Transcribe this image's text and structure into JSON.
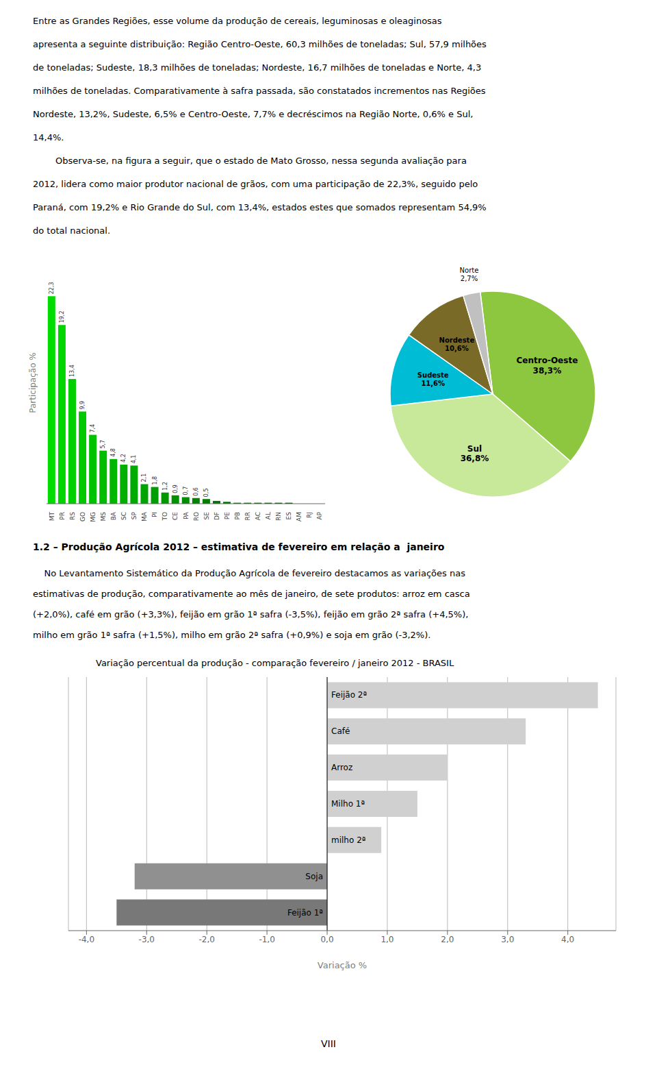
{
  "chart_data": [
    {
      "type": "bar",
      "annotations": [
        "Entre as Grandes Regiões, esse volume da produção de cereais, leguminosas e oleaginosas",
        "apresenta a seguinte distribuição: Região Centro-Oeste, 60,3 milhões de toneladas; Sul, 57,9 milhões",
        "de toneladas; Sudeste, 18,3 milhões de toneladas; Nordeste, 16,7 milhões de toneladas e Norte, 4,3",
        "milhões de toneladas. Comparativamente à safra passada, são constatados incrementos nas Regiões",
        "Nordeste, 13,2%, Sudeste, 6,5% e Centro-Oeste, 7,7% e decréscimos na Região Norte, 0,6% e Sul,",
        "14,4%.",
        "        Observa-se, na figura a seguir, que o estado de Mato Grosso, nessa segunda avaliação para",
        "2012, lidera como maior produtor nacional de grãos, com uma participação de 22,3%, seguido pelo",
        "Paraná, com 19,2% e Rio Grande do Sul, com 13,4%, estados estes que somados representam 54,9%",
        "do total nacional."
      ],
      "y_label": "Participação %",
      "categories": [
        "MT",
        "PR",
        "RS",
        "GO",
        "MG",
        "MS",
        "BA",
        "SC",
        "SP",
        "MA",
        "PI",
        "TO",
        "CE",
        "PA",
        "RO",
        "SE",
        "DF",
        "PE",
        "PB",
        "RR",
        "AC",
        "AL",
        "RN",
        "ES",
        "AM",
        "RJ",
        "AP"
      ],
      "values": [
        22.3,
        19.2,
        13.4,
        9.9,
        7.4,
        5.7,
        4.8,
        4.2,
        4.1,
        2.1,
        1.8,
        1.2,
        0.9,
        0.7,
        0.6,
        0.5,
        0.3,
        0.2,
        0.1,
        0.1,
        0.1,
        0.1,
        0.1,
        0.1,
        0.0,
        0.0,
        0.0
      ],
      "value_labels": [
        "22,3",
        "19,2",
        "13,4",
        "9,9",
        "7,4",
        "5,7",
        "4,8",
        "4,2",
        "4,1",
        "2,1",
        "1,8",
        "1,2",
        "0,9",
        "0,7",
        "0,6",
        "0,5",
        null,
        null,
        null,
        null,
        null,
        null,
        null,
        null,
        null,
        null,
        null
      ],
      "data_labels": true,
      "colors": [
        "#00dc00",
        "#00d500",
        "#00cf00",
        "#00c900",
        "#00c300",
        "#00bd00",
        "#00b700",
        "#00b000",
        "#00aa00",
        "#00a400",
        "#009e00",
        "#009800",
        "#009200",
        "#008c00",
        "#008500",
        "#007f00",
        "#007900",
        "#007300",
        "#006d00",
        "#006700",
        "#006000",
        "#005a00",
        "#005400",
        "#004e00",
        "#004800",
        "#004200",
        "#003c00"
      ],
      "ylim": [
        0,
        26
      ],
      "tick_labels": "x",
      "grid": false
    },
    {
      "type": "pie",
      "categories": [
        "Centro-Oeste",
        "Sul",
        "Sudeste",
        "Nordeste",
        "Norte"
      ],
      "values": [
        38.3,
        36.8,
        11.6,
        10.6,
        2.7
      ],
      "value_labels": [
        "38,3%",
        "36,8%",
        "11,6%",
        "10,6%",
        "2,7%"
      ],
      "data_labels": true,
      "colors": [
        "#8dc63f",
        "#c8e89a",
        "#00bcd4",
        "#7a6a28",
        "#c0c0c0"
      ]
    },
    {
      "type": "bar",
      "orientation": "horizontal",
      "annotations": [
        "1.2 – Produção Agrícola 2012 – estimativa de fevereiro em relação a  janeiro",
        "    No Levantamento Sistemático da Produção Agrícola de fevereiro destacamos as variações nas",
        "estimativas de produção, comparativamente ao mês de janeiro, de sete produtos: arroz em casca",
        "(+2,0%), café em grão (+3,3%), feijão em grão 1ª safra (-3,5%), feijão em grão 2ª safra (+4,5%),",
        "milho em grão 1ª safra (+1,5%), milho em grão 2ª safra (+0,9%) e soja em grão (-3,2%).",
        "VIII"
      ],
      "title": "Variação percentual da produção - comparação fevereiro / janeiro 2012 - BRASIL",
      "x_label": "Variação %",
      "categories": [
        "Feijão 2ª",
        "Café",
        "Arroz",
        "Milho 1ª",
        "milho 2ª",
        "Soja",
        "Feijão 1ª"
      ],
      "values": [
        4.5,
        3.3,
        2.0,
        1.5,
        0.9,
        -3.2,
        -3.5
      ],
      "colors": [
        "#d0d0d0",
        "#d0d0d0",
        "#d0d0d0",
        "#d0d0d0",
        "#d0d0d0",
        "#909090",
        "#787878"
      ],
      "xlim": [
        -4.3,
        4.8
      ],
      "xticks": [
        {
          "value": -4.0,
          "label": "-4,0"
        },
        {
          "value": -3.0,
          "label": "-3,0"
        },
        {
          "value": -2.0,
          "label": "-2,0"
        },
        {
          "value": -1.0,
          "label": "-1,0"
        },
        {
          "value": 0.0,
          "label": "0,0"
        },
        {
          "value": 1.0,
          "label": "1,0"
        },
        {
          "value": 2.0,
          "label": "2,0"
        },
        {
          "value": 3.0,
          "label": "3,0"
        },
        {
          "value": 4.0,
          "label": "4,0"
        }
      ],
      "tick_labels": "x",
      "grid": true
    }
  ]
}
